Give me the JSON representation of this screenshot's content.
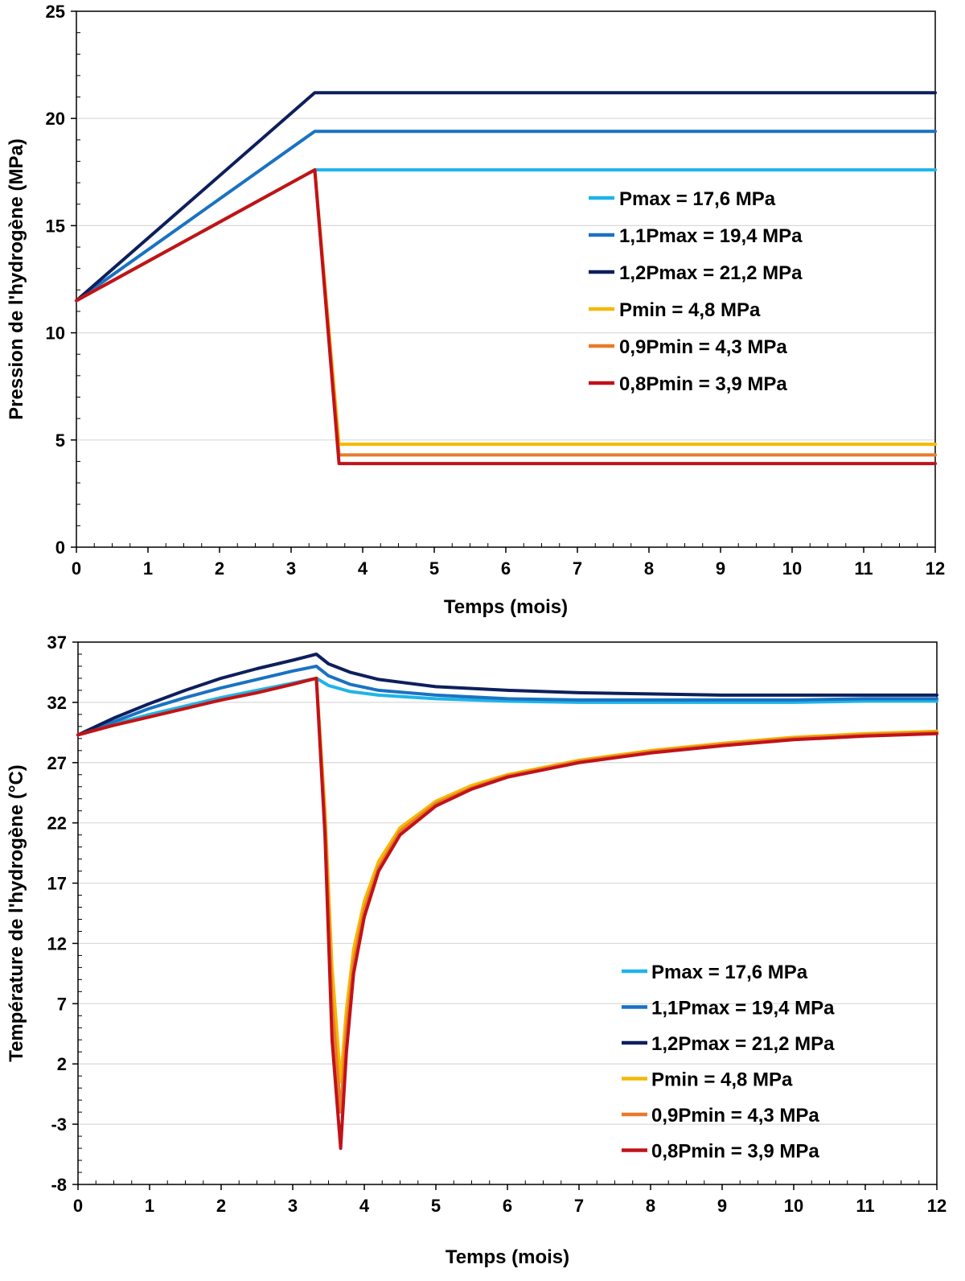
{
  "chart_data": [
    {
      "type": "line",
      "title": "",
      "xlabel": "Temps (mois)",
      "ylabel": "Pression de l'hydrogène (MPa)",
      "xlim": [
        0,
        12
      ],
      "ylim": [
        0,
        25
      ],
      "x_ticks": [
        "0",
        "1",
        "2",
        "3",
        "4",
        "5",
        "6",
        "7",
        "8",
        "9",
        "10",
        "11",
        "12"
      ],
      "y_ticks": [
        "0",
        "5",
        "10",
        "15",
        "20",
        "25"
      ],
      "grid": "horizontal",
      "legend_position": "center-right",
      "series": [
        {
          "name": "Pmax = 17,6 MPa",
          "color": "#1fb4e8",
          "x": [
            0,
            3.33,
            12
          ],
          "y": [
            11.5,
            17.6,
            17.6
          ]
        },
        {
          "name": "1,1Pmax = 19,4 MPa",
          "color": "#1a72c2",
          "x": [
            0,
            3.33,
            12
          ],
          "y": [
            11.5,
            19.4,
            19.4
          ]
        },
        {
          "name": "1,2Pmax = 21,2 MPa",
          "color": "#0d1f5c",
          "x": [
            0,
            3.33,
            12
          ],
          "y": [
            11.5,
            21.2,
            21.2
          ]
        },
        {
          "name": "Pmin = 4,8 MPa",
          "color": "#f5b800",
          "x": [
            0,
            3.33,
            3.67,
            12
          ],
          "y": [
            11.5,
            17.6,
            4.8,
            4.8
          ]
        },
        {
          "name": "0,9Pmin = 4,3 MPa",
          "color": "#e97a2a",
          "x": [
            0,
            3.33,
            3.67,
            12
          ],
          "y": [
            11.5,
            17.6,
            4.3,
            4.3
          ]
        },
        {
          "name": "0,8Pmin = 3,9 MPa",
          "color": "#c0121a",
          "x": [
            0,
            3.33,
            3.67,
            12
          ],
          "y": [
            11.5,
            17.6,
            3.9,
            3.9
          ]
        }
      ]
    },
    {
      "type": "line",
      "title": "",
      "xlabel": "Temps (mois)",
      "ylabel": "Température de l'hydrogène (°C)",
      "xlim": [
        0,
        12
      ],
      "ylim": [
        -8,
        37
      ],
      "x_ticks": [
        "0",
        "1",
        "2",
        "3",
        "4",
        "5",
        "6",
        "7",
        "8",
        "9",
        "10",
        "11",
        "12"
      ],
      "y_ticks": [
        "-8",
        "-3",
        "2",
        "7",
        "12",
        "17",
        "22",
        "27",
        "32",
        "37"
      ],
      "grid": "horizontal",
      "legend_position": "bottom-right",
      "series": [
        {
          "name": "Pmax = 17,6 MPa",
          "color": "#1fb4e8",
          "x": [
            0,
            0.5,
            1,
            1.5,
            2,
            2.5,
            3,
            3.33,
            3.5,
            3.8,
            4.2,
            5,
            6,
            7,
            8,
            9,
            10,
            11,
            12
          ],
          "y": [
            29.3,
            30.2,
            31.0,
            31.7,
            32.4,
            33.0,
            33.6,
            34.0,
            33.4,
            32.9,
            32.6,
            32.3,
            32.1,
            32.0,
            32.0,
            32.0,
            32.0,
            32.1,
            32.1
          ]
        },
        {
          "name": "1,1Pmax = 19,4 MPa",
          "color": "#1a72c2",
          "x": [
            0,
            0.5,
            1,
            1.5,
            2,
            2.5,
            3,
            3.33,
            3.5,
            3.8,
            4.2,
            5,
            6,
            7,
            8,
            9,
            10,
            11,
            12
          ],
          "y": [
            29.3,
            30.4,
            31.5,
            32.4,
            33.2,
            33.9,
            34.6,
            35.0,
            34.2,
            33.5,
            33.0,
            32.6,
            32.3,
            32.2,
            32.2,
            32.2,
            32.2,
            32.3,
            32.3
          ]
        },
        {
          "name": "1,2Pmax = 21,2 MPa",
          "color": "#0d1f5c",
          "x": [
            0,
            0.5,
            1,
            1.5,
            2,
            2.5,
            3,
            3.33,
            3.5,
            3.8,
            4.2,
            5,
            6,
            7,
            8,
            9,
            10,
            11,
            12
          ],
          "y": [
            29.3,
            30.7,
            31.9,
            33.0,
            34.0,
            34.8,
            35.5,
            36.0,
            35.2,
            34.5,
            33.9,
            33.3,
            33.0,
            32.8,
            32.7,
            32.6,
            32.6,
            32.6,
            32.6
          ]
        },
        {
          "name": "Pmin = 4,8 MPa",
          "color": "#f5b800",
          "x": [
            0,
            0.5,
            1,
            1.5,
            2,
            2.5,
            3,
            3.33,
            3.45,
            3.55,
            3.67,
            3.75,
            3.85,
            4.0,
            4.2,
            4.5,
            5,
            5.5,
            6,
            7,
            8,
            9,
            10,
            11,
            12
          ],
          "y": [
            29.3,
            30.1,
            30.8,
            31.5,
            32.2,
            32.8,
            33.5,
            34.0,
            23.0,
            10.0,
            0.5,
            6.5,
            11.5,
            15.5,
            18.8,
            21.6,
            23.8,
            25.1,
            26.0,
            27.2,
            28.0,
            28.6,
            29.1,
            29.4,
            29.6
          ]
        },
        {
          "name": "0,9Pmin = 4,3 MPa",
          "color": "#e97a2a",
          "x": [
            0,
            0.5,
            1,
            1.5,
            2,
            2.5,
            3,
            3.33,
            3.45,
            3.55,
            3.67,
            3.75,
            3.85,
            4.0,
            4.2,
            4.5,
            5,
            5.5,
            6,
            7,
            8,
            9,
            10,
            11,
            12
          ],
          "y": [
            29.3,
            30.1,
            30.8,
            31.5,
            32.2,
            32.8,
            33.5,
            34.0,
            22.0,
            7.0,
            -2.0,
            4.8,
            10.4,
            14.8,
            18.3,
            21.3,
            23.6,
            24.9,
            25.9,
            27.1,
            27.9,
            28.5,
            29.0,
            29.3,
            29.5
          ]
        },
        {
          "name": "0,8Pmin = 3,9 MPa",
          "color": "#c0121a",
          "x": [
            0,
            0.5,
            1,
            1.5,
            2,
            2.5,
            3,
            3.33,
            3.45,
            3.55,
            3.67,
            3.75,
            3.85,
            4.0,
            4.2,
            4.5,
            5,
            5.5,
            6,
            7,
            8,
            9,
            10,
            11,
            12
          ],
          "y": [
            29.3,
            30.1,
            30.8,
            31.5,
            32.2,
            32.8,
            33.5,
            34.0,
            21.0,
            4.0,
            -5.0,
            3.0,
            9.5,
            14.2,
            18.0,
            21.0,
            23.4,
            24.8,
            25.8,
            27.0,
            27.8,
            28.4,
            28.9,
            29.2,
            29.4
          ]
        }
      ]
    }
  ]
}
